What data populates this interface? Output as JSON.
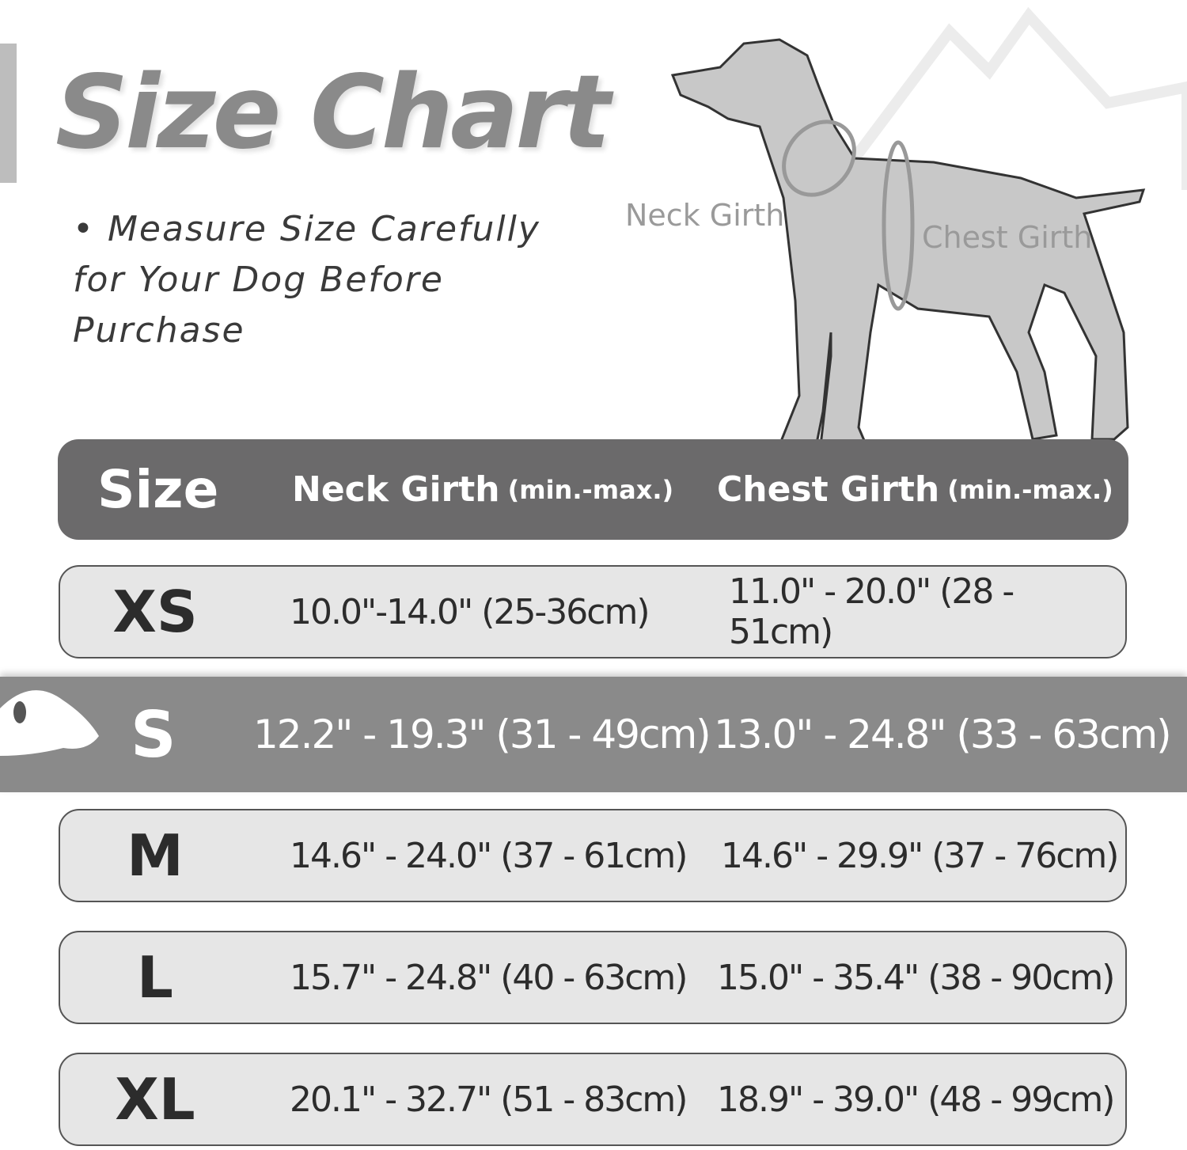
{
  "title": "Size Chart",
  "note": "• Measure Size Carefully for Your Dog Before Purchase",
  "diagram_labels": {
    "neck": "Neck Girth",
    "chest": "Chest Girth"
  },
  "header": {
    "size": "Size",
    "neck": "Neck Girth",
    "neck_sub": "(min.-max.)",
    "chest": "Chest Girth",
    "chest_sub": "(min.-max.)"
  },
  "rows": [
    {
      "size": "XS",
      "neck": "10.0\"-14.0\" (25-36cm)",
      "chest": "11.0\" - 20.0\" (28 - 51cm)"
    },
    {
      "size": "S",
      "neck": "12.2\" - 19.3\" (31 - 49cm)",
      "chest": "13.0\" - 24.8\" (33 - 63cm)",
      "highlighted": true
    },
    {
      "size": "M",
      "neck": "14.6\" - 24.0\" (37 - 61cm)",
      "chest": "14.6\" - 29.9\" (37 - 76cm)"
    },
    {
      "size": "L",
      "neck": "15.7\" - 24.8\" (40 - 63cm)",
      "chest": "15.0\" - 35.4\" (38 - 90cm)"
    },
    {
      "size": "XL",
      "neck": "20.1\" - 32.7\" (51 - 83cm)",
      "chest": "18.9\" - 39.0\" (48 - 99cm)"
    }
  ],
  "colors": {
    "header_bg": "#6b6a6b",
    "row_bg": "#e6e6e6",
    "highlight_bg": "#8a8a8a",
    "title": "#8a8a8a"
  }
}
